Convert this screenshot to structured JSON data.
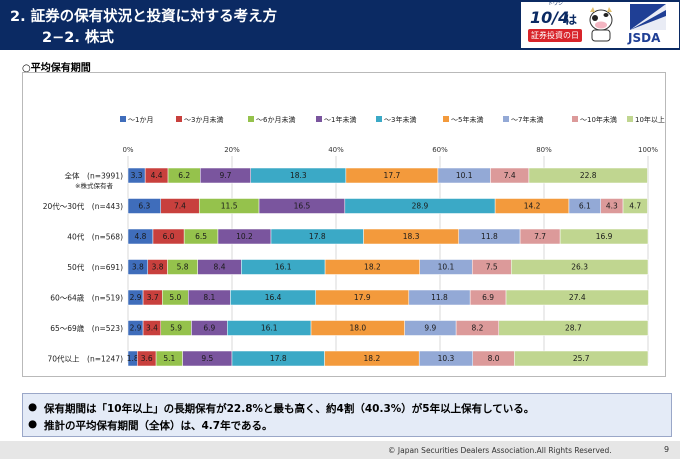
{
  "header": {
    "title_line1": "2. 証券の保有状況と投資に対する考え方",
    "title_line2": "2−2. 株式",
    "logo_date": "10/4",
    "logo_ha": "は",
    "logo_ruby": "トウシ",
    "logo_day": "証券投資の日",
    "org_logo": "JSDA"
  },
  "section_title": "○平均保有期間",
  "chart_data": {
    "type": "bar",
    "orientation": "horizontal-stacked-percent",
    "x_ticks": [
      "0%",
      "20%",
      "40%",
      "60%",
      "80%",
      "100%"
    ],
    "xlim": [
      0,
      100
    ],
    "grid": true,
    "legend_position": "top",
    "categories": [
      "全体　(n=3991)",
      "20代〜30代　(n=443)",
      "40代　(n=568)",
      "50代　(n=691)",
      "60〜64歳　(n=519)",
      "65〜69歳　(n=523)",
      "70代以上　(n=1247)"
    ],
    "category_note": "※株式保有者",
    "series": [
      {
        "name": "〜1か月",
        "color": "#3f6dbb",
        "values": [
          3.3,
          6.3,
          4.8,
          3.8,
          2.9,
          2.9,
          1.8
        ]
      },
      {
        "name": "〜3か月未満",
        "color": "#c8403d",
        "values": [
          4.4,
          7.4,
          6.0,
          3.8,
          3.7,
          3.4,
          3.6
        ]
      },
      {
        "name": "〜6か月未満",
        "color": "#95c24c",
        "values": [
          6.2,
          11.5,
          6.5,
          5.8,
          5.0,
          5.9,
          5.1
        ]
      },
      {
        "name": "〜1年未満",
        "color": "#7a559e",
        "values": [
          9.7,
          16.5,
          10.2,
          8.4,
          8.1,
          6.9,
          9.5
        ]
      },
      {
        "name": "〜3年未満",
        "color": "#3ba9c6",
        "values": [
          18.3,
          28.9,
          17.8,
          16.1,
          16.4,
          16.1,
          17.8
        ]
      },
      {
        "name": "〜5年未満",
        "color": "#f39a3c",
        "values": [
          17.7,
          14.2,
          18.3,
          18.2,
          17.9,
          18.0,
          18.2
        ]
      },
      {
        "name": "〜7年未満",
        "color": "#93a9d6",
        "values": [
          10.1,
          6.1,
          11.8,
          10.1,
          11.8,
          9.9,
          10.3
        ]
      },
      {
        "name": "〜10年未満",
        "color": "#dc9a9a",
        "values": [
          7.4,
          4.3,
          7.7,
          7.5,
          6.9,
          8.2,
          8.0
        ]
      },
      {
        "name": "10年以上",
        "color": "#c0d690",
        "values": [
          22.8,
          4.7,
          16.9,
          26.3,
          27.4,
          28.7,
          25.7
        ]
      }
    ]
  },
  "findings": [
    "保有期間は「10年以上」の長期保有が22.8%と最も高く、約4割（40.3%）が5年以上保有している。",
    "推計の平均保有期間（全体）は、4.7年である。"
  ],
  "bullet": "●",
  "footer": {
    "copyright": "© Japan Securities Dealers Association.All Rights Reserved.",
    "page": "9"
  }
}
